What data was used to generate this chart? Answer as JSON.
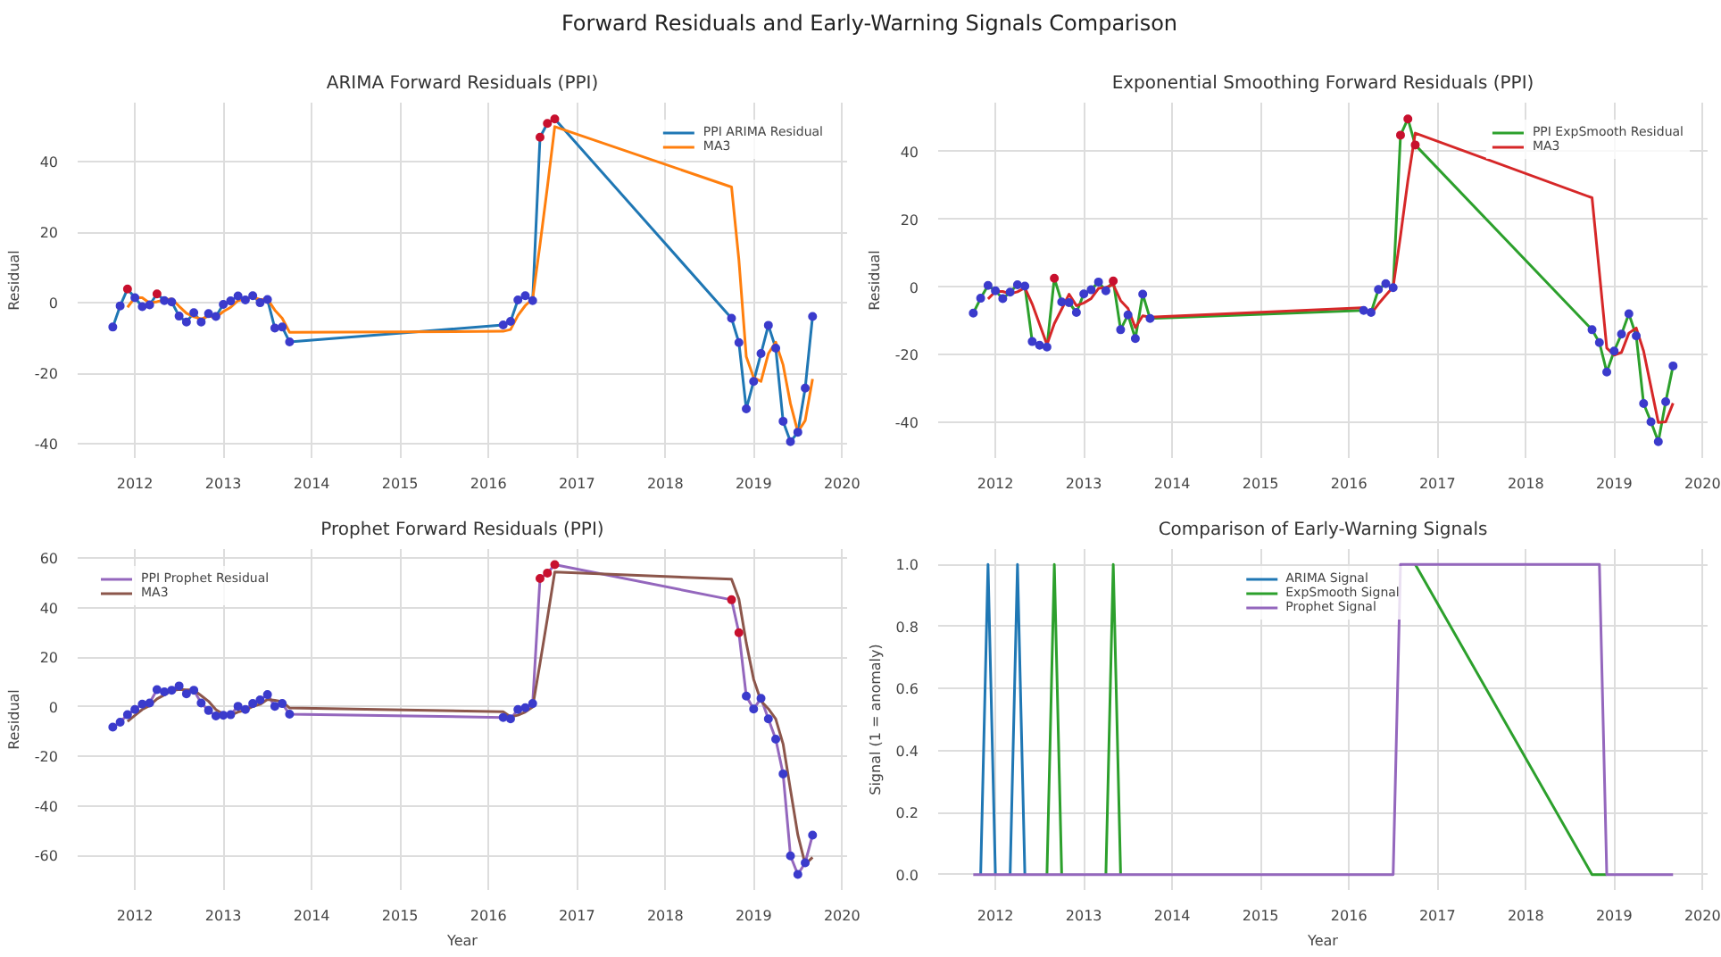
{
  "chart_data": [
    {
      "type": "other",
      "title": "Forward Residuals and Early-Warning Signals Comparison"
    },
    {
      "type": "line",
      "title": "ARIMA Forward Residuals (PPI)",
      "ylabel": "Residual",
      "grid": true,
      "legend": "top right",
      "x": [
        "2011-10",
        "2011-11",
        "2011-12",
        "2012-01",
        "2012-02",
        "2012-03",
        "2012-04",
        "2012-05",
        "2012-06",
        "2012-07",
        "2012-08",
        "2012-09",
        "2012-10",
        "2012-11",
        "2012-12",
        "2013-01",
        "2013-02",
        "2013-03",
        "2013-04",
        "2013-05",
        "2013-06",
        "2013-07",
        "2013-08",
        "2013-09",
        "2013-10",
        "2016-03",
        "2016-04",
        "2016-05",
        "2016-06",
        "2016-07",
        "2016-08",
        "2016-09",
        "2016-10",
        "2018-10",
        "2018-11",
        "2018-12",
        "2019-01",
        "2019-02",
        "2019-03",
        "2019-04",
        "2019-05",
        "2019-06",
        "2019-07",
        "2019-08",
        "2019-09"
      ],
      "xlim": [
        "2011-05-08",
        "2020-01-22"
      ],
      "xticks": [
        "2012",
        "2013",
        "2014",
        "2015",
        "2016",
        "2017",
        "2018",
        "2019",
        "2020"
      ],
      "ylim": [
        -44,
        56.7
      ],
      "yticks": [
        -40,
        -20,
        0,
        20,
        40
      ],
      "series": [
        {
          "name": "PPI ARIMA Residual",
          "color": "#1f77b4",
          "values": [
            -6.9,
            -0.9,
            3.9,
            1.4,
            -1.1,
            -0.6,
            2.5,
            0.6,
            0.2,
            -3.8,
            -5.5,
            -2.8,
            -5.5,
            -3.1,
            -3.9,
            -0.5,
            0.5,
            1.9,
            0.8,
            2.0,
            0,
            0.9,
            -7.2,
            -6.9,
            -11.1,
            -6.3,
            -5.3,
            0.8,
            2.0,
            0.6,
            46.9,
            50.8,
            52.1,
            -4.4,
            -11.3,
            -30.1,
            -22.3,
            -14.4,
            -6.4,
            -12.9,
            -33.6,
            -39.4,
            -36.7,
            -24.2,
            -3.9
          ]
        },
        {
          "name": "MA3",
          "color": "#ff7f0e",
          "values": [
            null,
            null,
            -1.3,
            1.5,
            1.4,
            -0.1,
            0.3,
            0.8,
            1.1,
            -1.0,
            -3.0,
            -4.0,
            -4.6,
            -3.8,
            -4.2,
            -2.5,
            -1.3,
            0.6,
            1.1,
            1.6,
            0.9,
            1.0,
            -2.1,
            -4.4,
            -8.4,
            -8.1,
            -7.6,
            -3.6,
            -0.8,
            1.1,
            16.5,
            32.8,
            49.9,
            32.8,
            12.1,
            -15.3,
            -21.2,
            -22.3,
            -14.4,
            -11.2,
            -17.6,
            -28.6,
            -36.6,
            -33.4,
            -21.6
          ]
        },
        {
          "type": "scatter",
          "marker": "circle",
          "values": [
            -6.9,
            -0.9,
            3.9,
            1.4,
            -1.1,
            -0.6,
            2.5,
            0.6,
            0.2,
            -3.8,
            -5.5,
            -2.8,
            -5.5,
            -3.1,
            -3.9,
            -0.5,
            0.5,
            1.9,
            0.8,
            2.0,
            0,
            0.9,
            -7.2,
            -6.9,
            -11.1,
            -6.3,
            -5.3,
            0.8,
            2.0,
            0.6,
            46.9,
            50.8,
            52.1,
            -4.4,
            -11.3,
            -30.1,
            -22.3,
            -14.4,
            -6.4,
            -12.9,
            -33.6,
            -39.4,
            -36.7,
            -24.2,
            -3.9
          ],
          "colors": [
            "#3b3bcc",
            "#3b3bcc",
            "#c8102e",
            "#3b3bcc",
            "#3b3bcc",
            "#3b3bcc",
            "#c8102e",
            "#3b3bcc",
            "#3b3bcc",
            "#3b3bcc",
            "#3b3bcc",
            "#3b3bcc",
            "#3b3bcc",
            "#3b3bcc",
            "#3b3bcc",
            "#3b3bcc",
            "#3b3bcc",
            "#3b3bcc",
            "#3b3bcc",
            "#3b3bcc",
            "#3b3bcc",
            "#3b3bcc",
            "#3b3bcc",
            "#3b3bcc",
            "#3b3bcc",
            "#3b3bcc",
            "#3b3bcc",
            "#3b3bcc",
            "#3b3bcc",
            "#3b3bcc",
            "#c8102e",
            "#c8102e",
            "#c8102e",
            "#3b3bcc",
            "#3b3bcc",
            "#3b3bcc",
            "#3b3bcc",
            "#3b3bcc",
            "#3b3bcc",
            "#3b3bcc",
            "#3b3bcc",
            "#3b3bcc",
            "#3b3bcc",
            "#3b3bcc",
            "#3b3bcc"
          ]
        }
      ]
    },
    {
      "type": "line",
      "title": "Exponential Smoothing Forward Residuals (PPI)",
      "ylabel": "Residual",
      "grid": true,
      "legend": "top right",
      "x": [
        "2011-10",
        "2011-11",
        "2011-12",
        "2012-01",
        "2012-02",
        "2012-03",
        "2012-04",
        "2012-05",
        "2012-06",
        "2012-07",
        "2012-08",
        "2012-09",
        "2012-10",
        "2012-11",
        "2012-12",
        "2013-01",
        "2013-02",
        "2013-03",
        "2013-04",
        "2013-05",
        "2013-06",
        "2013-07",
        "2013-08",
        "2013-09",
        "2013-10",
        "2016-03",
        "2016-04",
        "2016-05",
        "2016-06",
        "2016-07",
        "2016-08",
        "2016-09",
        "2016-10",
        "2018-10",
        "2018-11",
        "2018-12",
        "2019-01",
        "2019-02",
        "2019-03",
        "2019-04",
        "2019-05",
        "2019-06",
        "2019-07",
        "2019-08",
        "2019-09"
      ],
      "xlim": [
        "2011-05-08",
        "2020-01-22"
      ],
      "xticks": [
        "2012",
        "2013",
        "2014",
        "2015",
        "2016",
        "2017",
        "2018",
        "2019",
        "2020"
      ],
      "ylim": [
        -50.5,
        54.5
      ],
      "yticks": [
        -40,
        -20,
        0,
        20,
        40
      ],
      "series": [
        {
          "name": "PPI ExpSmooth Residual",
          "color": "#2ca02c",
          "values": [
            -7.7,
            -3.3,
            0.5,
            -1.1,
            -3.4,
            -1.5,
            0.7,
            0.3,
            -16.1,
            -17.2,
            -17.7,
            2.6,
            -4.4,
            -4.6,
            -7.5,
            -2.0,
            -0.8,
            1.5,
            -1.1,
            1.8,
            -12.6,
            -8.2,
            -15.2,
            -2.1,
            -9.3,
            -6.9,
            -7.5,
            -0.7,
            1.0,
            -0.2,
            44.9,
            49.7,
            42.0,
            -12.6,
            -16.4,
            -25.1,
            -18.9,
            -13.9,
            -7.9,
            -14.4,
            -34.4,
            -39.8,
            -45.7,
            -33.9,
            -23.3
          ]
        },
        {
          "name": "MA3",
          "color": "#d62728",
          "values": [
            null,
            null,
            -3.5,
            -1.3,
            -1.3,
            -2.0,
            -1.4,
            -0.2,
            -5.0,
            -11.0,
            -17.0,
            -10.8,
            -6.5,
            -2.1,
            -5.5,
            -4.7,
            -3.4,
            -0.4,
            -0.1,
            0.7,
            -4.0,
            -6.3,
            -12.0,
            -8.5,
            -8.9,
            -6.1,
            -7.9,
            -5.0,
            -2.4,
            0.0,
            15.2,
            31.5,
            45.5,
            26.4,
            4.3,
            -18.0,
            -20.1,
            -19.3,
            -13.6,
            -12.1,
            -18.9,
            -29.5,
            -40.0,
            -39.8,
            -34.3
          ]
        },
        {
          "type": "scatter",
          "marker": "circle",
          "values": [
            -7.7,
            -3.3,
            0.5,
            -1.1,
            -3.4,
            -1.5,
            0.7,
            0.3,
            -16.1,
            -17.2,
            -17.7,
            2.6,
            -4.4,
            -4.6,
            -7.5,
            -2.0,
            -0.8,
            1.5,
            -1.1,
            1.8,
            -12.6,
            -8.2,
            -15.2,
            -2.1,
            -9.3,
            -6.9,
            -7.5,
            -0.7,
            1.0,
            -0.2,
            44.9,
            49.7,
            42.0,
            -12.6,
            -16.4,
            -25.1,
            -18.9,
            -13.9,
            -7.9,
            -14.4,
            -34.4,
            -39.8,
            -45.7,
            -33.9,
            -23.3
          ],
          "colors": [
            "#3b3bcc",
            "#3b3bcc",
            "#3b3bcc",
            "#3b3bcc",
            "#3b3bcc",
            "#3b3bcc",
            "#3b3bcc",
            "#3b3bcc",
            "#3b3bcc",
            "#3b3bcc",
            "#3b3bcc",
            "#c8102e",
            "#3b3bcc",
            "#3b3bcc",
            "#3b3bcc",
            "#3b3bcc",
            "#3b3bcc",
            "#3b3bcc",
            "#3b3bcc",
            "#c8102e",
            "#3b3bcc",
            "#3b3bcc",
            "#3b3bcc",
            "#3b3bcc",
            "#3b3bcc",
            "#3b3bcc",
            "#3b3bcc",
            "#3b3bcc",
            "#3b3bcc",
            "#3b3bcc",
            "#c8102e",
            "#c8102e",
            "#c8102e",
            "#3b3bcc",
            "#3b3bcc",
            "#3b3bcc",
            "#3b3bcc",
            "#3b3bcc",
            "#3b3bcc",
            "#3b3bcc",
            "#3b3bcc",
            "#3b3bcc",
            "#3b3bcc",
            "#3b3bcc",
            "#3b3bcc"
          ]
        }
      ]
    },
    {
      "type": "line",
      "title": "Prophet Forward Residuals (PPI)",
      "xlabel": "Year",
      "ylabel": "Residual",
      "grid": true,
      "legend": "top left",
      "x": [
        "2011-10",
        "2011-11",
        "2011-12",
        "2012-01",
        "2012-02",
        "2012-03",
        "2012-04",
        "2012-05",
        "2012-06",
        "2012-07",
        "2012-08",
        "2012-09",
        "2012-10",
        "2012-11",
        "2012-12",
        "2013-01",
        "2013-02",
        "2013-03",
        "2013-04",
        "2013-05",
        "2013-06",
        "2013-07",
        "2013-08",
        "2013-09",
        "2013-10",
        "2016-03",
        "2016-04",
        "2016-05",
        "2016-06",
        "2016-07",
        "2016-08",
        "2016-09",
        "2016-10",
        "2018-10",
        "2018-11",
        "2018-12",
        "2019-01",
        "2019-02",
        "2019-03",
        "2019-04",
        "2019-05",
        "2019-06",
        "2019-07",
        "2019-08",
        "2019-09"
      ],
      "xlim": [
        "2011-05-08",
        "2020-01-22"
      ],
      "xticks": [
        "2012",
        "2013",
        "2014",
        "2015",
        "2016",
        "2017",
        "2018",
        "2019",
        "2020"
      ],
      "ylim": [
        -74,
        63.7
      ],
      "yticks": [
        -60,
        -40,
        -20,
        0,
        20,
        40,
        60
      ],
      "series": [
        {
          "name": "PPI Prophet Residual",
          "color": "#9467bd",
          "values": [
            -8.2,
            -6.2,
            -3.2,
            -1.1,
            1.1,
            1.5,
            6.9,
            6.0,
            6.7,
            8.4,
            5.2,
            6.7,
            1.5,
            -1.5,
            -3.7,
            -3.4,
            -3.2,
            0.2,
            -1.1,
            1.3,
            2.8,
            4.9,
            0.2,
            1.3,
            -3.0,
            -4.3,
            -4.9,
            -1.1,
            -0.4,
            1.3,
            51.8,
            54.0,
            57.4,
            43.2,
            29.9,
            4.3,
            -0.9,
            3.4,
            -4.9,
            -13.1,
            -27.1,
            -60.2,
            -67.7,
            -63.0,
            -51.8
          ]
        },
        {
          "name": "MA3",
          "color": "#8c564b",
          "values": [
            null,
            null,
            -5.9,
            -3.5,
            -1.1,
            0.5,
            3.2,
            4.8,
            6.5,
            7.0,
            6.8,
            6.8,
            4.5,
            2.2,
            -1.2,
            -2.9,
            -3.4,
            -2.1,
            -1.4,
            0.1,
            1.0,
            3.0,
            2.6,
            2.1,
            -0.5,
            -2.0,
            -4.1,
            -3.4,
            -2.1,
            -0.1,
            17.6,
            35.7,
            54.4,
            51.5,
            43.5,
            25.8,
            11.1,
            2.3,
            -0.8,
            -4.9,
            -15.0,
            -33.5,
            -51.7,
            -63.6,
            -60.8
          ]
        },
        {
          "type": "scatter",
          "marker": "circle",
          "values": [
            -8.2,
            -6.2,
            -3.2,
            -1.1,
            1.1,
            1.5,
            6.9,
            6.0,
            6.7,
            8.4,
            5.2,
            6.7,
            1.5,
            -1.5,
            -3.7,
            -3.4,
            -3.2,
            0.2,
            -1.1,
            1.3,
            2.8,
            4.9,
            0.2,
            1.3,
            -3.0,
            -4.3,
            -4.9,
            -1.1,
            -0.4,
            1.3,
            51.8,
            54.0,
            57.4,
            43.2,
            29.9,
            4.3,
            -0.9,
            3.4,
            -4.9,
            -13.1,
            -27.1,
            -60.2,
            -67.7,
            -63.0,
            -51.8
          ],
          "colors": [
            "#3b3bcc",
            "#3b3bcc",
            "#3b3bcc",
            "#3b3bcc",
            "#3b3bcc",
            "#3b3bcc",
            "#3b3bcc",
            "#3b3bcc",
            "#3b3bcc",
            "#3b3bcc",
            "#3b3bcc",
            "#3b3bcc",
            "#3b3bcc",
            "#3b3bcc",
            "#3b3bcc",
            "#3b3bcc",
            "#3b3bcc",
            "#3b3bcc",
            "#3b3bcc",
            "#3b3bcc",
            "#3b3bcc",
            "#3b3bcc",
            "#3b3bcc",
            "#3b3bcc",
            "#3b3bcc",
            "#3b3bcc",
            "#3b3bcc",
            "#3b3bcc",
            "#3b3bcc",
            "#3b3bcc",
            "#c8102e",
            "#c8102e",
            "#c8102e",
            "#c8102e",
            "#c8102e",
            "#3b3bcc",
            "#3b3bcc",
            "#3b3bcc",
            "#3b3bcc",
            "#3b3bcc",
            "#3b3bcc",
            "#3b3bcc",
            "#3b3bcc",
            "#3b3bcc",
            "#3b3bcc"
          ]
        }
      ]
    },
    {
      "type": "line",
      "title": "Comparison of Early-Warning Signals",
      "xlabel": "Year",
      "ylabel": "Signal (1 = anomaly)",
      "grid": true,
      "legend": "top",
      "x": [
        "2011-10",
        "2011-11",
        "2011-12",
        "2012-01",
        "2012-02",
        "2012-03",
        "2012-04",
        "2012-05",
        "2012-06",
        "2012-07",
        "2012-08",
        "2012-09",
        "2012-10",
        "2012-11",
        "2012-12",
        "2013-01",
        "2013-02",
        "2013-03",
        "2013-04",
        "2013-05",
        "2013-06",
        "2013-07",
        "2013-08",
        "2013-09",
        "2013-10",
        "2016-03",
        "2016-04",
        "2016-05",
        "2016-06",
        "2016-07",
        "2016-08",
        "2016-09",
        "2016-10",
        "2018-10",
        "2018-11",
        "2018-12",
        "2019-01",
        "2019-02",
        "2019-03",
        "2019-04",
        "2019-05",
        "2019-06",
        "2019-07",
        "2019-08",
        "2019-09"
      ],
      "xlim": [
        "2011-05-08",
        "2020-01-22"
      ],
      "xticks": [
        "2012",
        "2013",
        "2014",
        "2015",
        "2016",
        "2017",
        "2018",
        "2019",
        "2020"
      ],
      "ylim": [
        -0.05,
        1.05
      ],
      "yticks": [
        {
          "value": 0,
          "label": "0.0"
        },
        {
          "value": 0.2,
          "label": "0.2"
        },
        {
          "value": 0.4,
          "label": "0.4"
        },
        {
          "value": 0.6,
          "label": "0.6"
        },
        {
          "value": 0.8,
          "label": "0.8"
        },
        {
          "value": 1,
          "label": "1.0"
        }
      ],
      "series": [
        {
          "name": "ARIMA Signal",
          "color": "#1f77b4",
          "values": [
            null,
            0,
            1,
            0,
            null,
            0,
            1,
            0,
            null,
            null,
            null,
            null,
            null,
            null,
            null,
            null,
            null,
            null,
            null,
            null,
            null,
            null,
            null,
            null,
            null,
            null,
            null,
            null,
            null,
            null,
            null,
            null,
            null,
            null,
            null,
            null,
            null,
            null,
            null,
            null,
            null,
            null,
            null,
            null,
            null
          ]
        },
        {
          "name": "ExpSmooth Signal",
          "color": "#2ca02c",
          "values": [
            null,
            null,
            null,
            null,
            null,
            null,
            null,
            null,
            null,
            null,
            0,
            1,
            0,
            null,
            null,
            null,
            null,
            null,
            0,
            1,
            0,
            null,
            null,
            null,
            null,
            null,
            null,
            null,
            null,
            null,
            null,
            null,
            1,
            0,
            0,
            0,
            null,
            null,
            null,
            null,
            null,
            null,
            null,
            null,
            null
          ]
        },
        {
          "name": "Prophet Signal",
          "color": "#9467bd",
          "values": [
            0,
            0,
            0,
            0,
            0,
            0,
            0,
            0,
            0,
            0,
            0,
            0,
            0,
            0,
            0,
            0,
            0,
            0,
            0,
            0,
            0,
            0,
            0,
            0,
            0,
            0,
            0,
            0,
            0,
            0,
            1,
            1,
            1,
            1,
            1,
            0,
            0,
            0,
            0,
            0,
            0,
            0,
            0,
            0,
            0
          ]
        }
      ]
    }
  ]
}
